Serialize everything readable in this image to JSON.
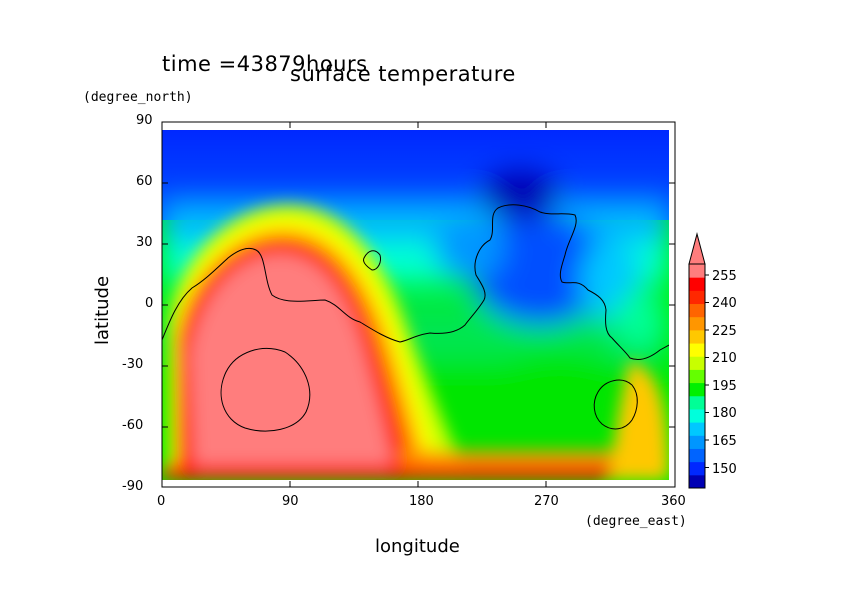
{
  "header": {
    "time_label": "time =43879hours",
    "title": "surface temperature"
  },
  "axes": {
    "x_label": "longitude",
    "y_label": "latitude",
    "x_unit": "(degree_east)",
    "y_unit": "(degree_north)"
  },
  "chart_data": {
    "type": "heatmap",
    "title": "surface temperature",
    "xlabel": "longitude",
    "ylabel": "latitude",
    "x_unit": "degree_east",
    "y_unit": "degree_north",
    "xlim": [
      0,
      360
    ],
    "ylim": [
      -90,
      90
    ],
    "x_ticks": [
      0,
      90,
      180,
      270,
      360
    ],
    "y_ticks": [
      90,
      60,
      30,
      0,
      -30,
      -60,
      -90
    ],
    "colorbar": {
      "levels": [
        150,
        165,
        180,
        195,
        210,
        225,
        240,
        255
      ],
      "colors": [
        "#0000b4",
        "#0028ff",
        "#0064ff",
        "#0096ff",
        "#00c8ff",
        "#00ffdc",
        "#00ff96",
        "#00f000",
        "#64ff00",
        "#c8ff00",
        "#ffff00",
        "#ffc800",
        "#ff9600",
        "#ff6400",
        "#ff2800",
        "#ff0000",
        "#ff7d7d"
      ],
      "extend_max": true,
      "labels": [
        "255",
        "240",
        "225",
        "210",
        "195",
        "180",
        "165",
        "150"
      ]
    },
    "grid": false,
    "legend": "right"
  }
}
